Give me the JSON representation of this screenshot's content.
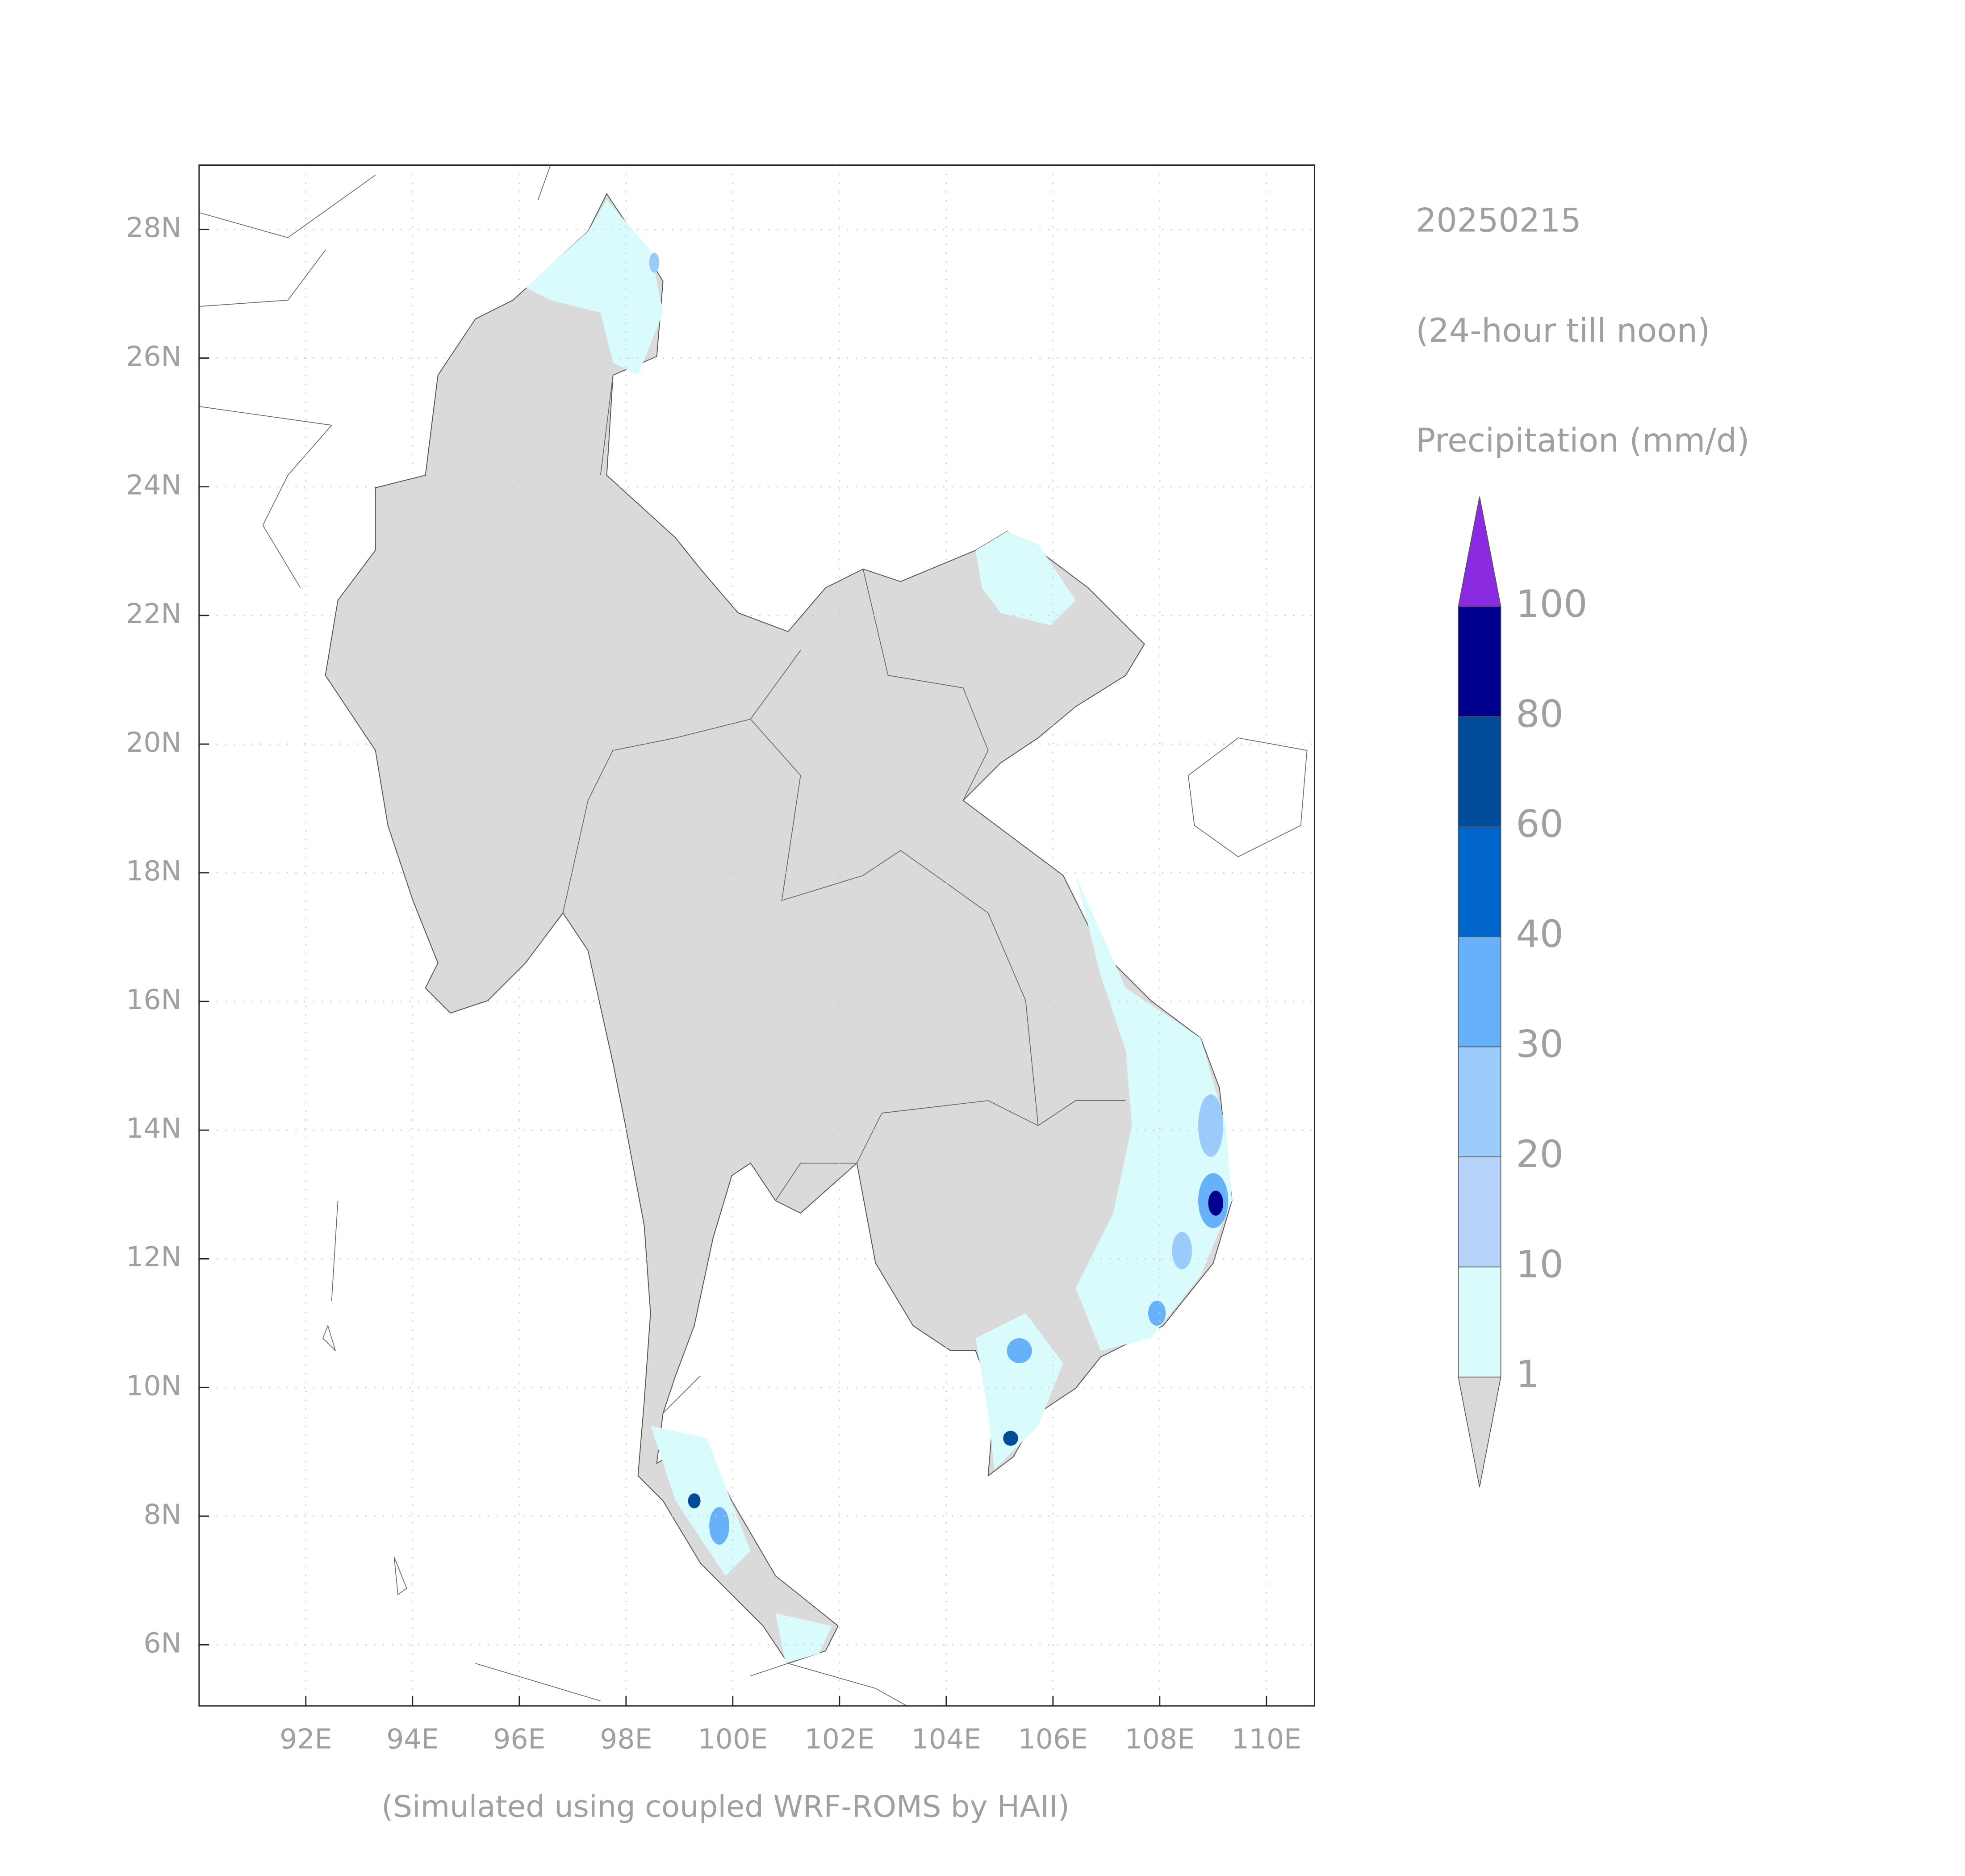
{
  "map": {
    "title": "20250215",
    "subtitle": "(24-hour till noon)",
    "variable": "Precipitation (mm/d)",
    "footer": "(Simulated using coupled WRF-ROMS by HAII)",
    "xlim": [
      90,
      110.9
    ],
    "ylim": [
      5.05,
      29
    ],
    "xticks": [
      {
        "value": 92,
        "label": "92E"
      },
      {
        "value": 94,
        "label": "94E"
      },
      {
        "value": 96,
        "label": "96E"
      },
      {
        "value": 98,
        "label": "98E"
      },
      {
        "value": 100,
        "label": "100E"
      },
      {
        "value": 102,
        "label": "102E"
      },
      {
        "value": 104,
        "label": "104E"
      },
      {
        "value": 106,
        "label": "106E"
      },
      {
        "value": 108,
        "label": "108E"
      },
      {
        "value": 110,
        "label": "110E"
      }
    ],
    "yticks": [
      {
        "value": 6,
        "label": "6N"
      },
      {
        "value": 8,
        "label": "8N"
      },
      {
        "value": 10,
        "label": "10N"
      },
      {
        "value": 12,
        "label": "12N"
      },
      {
        "value": 14,
        "label": "14N"
      },
      {
        "value": 16,
        "label": "16N"
      },
      {
        "value": 18,
        "label": "18N"
      },
      {
        "value": 20,
        "label": "20N"
      },
      {
        "value": 22,
        "label": "22N"
      },
      {
        "value": 24,
        "label": "24N"
      },
      {
        "value": 26,
        "label": "26N"
      },
      {
        "value": 28,
        "label": "28N"
      }
    ],
    "grid": true,
    "colorbar": {
      "levels": [
        1,
        10,
        20,
        30,
        40,
        60,
        80,
        100
      ],
      "colors": [
        "#d9fbfb",
        "#b6d2fb",
        "#9bcbfb",
        "#66b1fa",
        "#0066cc",
        "#004c99",
        "#00008f"
      ],
      "under_color": "#d9d9d9",
      "over_color": "#8a2be2"
    }
  }
}
